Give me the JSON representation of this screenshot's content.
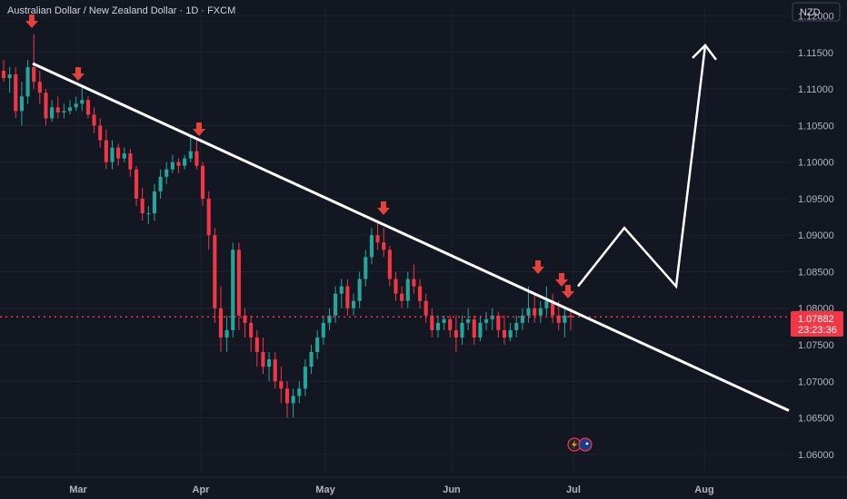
{
  "header": {
    "title": "Australian Dollar / New Zealand Dollar · 1D · FXCM",
    "currency_button": "NZD"
  },
  "price_badge": {
    "price": "1.07882",
    "countdown": "23:23:36",
    "color": "#f23645"
  },
  "colors": {
    "background": "#131722",
    "up": "#26a69a",
    "down": "#f23645",
    "grid": "#1e222d",
    "arrow": "#e5413d",
    "trendline": "#ffffff"
  },
  "icons": [
    "lightning-icon",
    "flag-au-icon"
  ],
  "chart_data": {
    "type": "candlestick",
    "title": "Australian Dollar / New Zealand Dollar · 1D · FXCM",
    "y_ticks": [
      "1.12000",
      "1.11500",
      "1.11000",
      "1.10500",
      "1.10000",
      "1.09500",
      "1.09000",
      "1.08500",
      "1.08000",
      "1.07500",
      "1.07000",
      "1.06500",
      "1.06000"
    ],
    "ylim": [
      1.0596,
      1.1212
    ],
    "x_ticks": [
      "Mar",
      "Apr",
      "May",
      "Jun",
      "Jul",
      "Aug"
    ],
    "last_price": 1.07882,
    "grid": true,
    "candles": [
      [
        1.1125,
        1.114,
        1.111,
        1.1115
      ],
      [
        1.1115,
        1.113,
        1.1095,
        1.112
      ],
      [
        1.112,
        1.113,
        1.106,
        1.107
      ],
      [
        1.107,
        1.111,
        1.105,
        1.109
      ],
      [
        1.109,
        1.114,
        1.108,
        1.113
      ],
      [
        1.113,
        1.1175,
        1.11,
        1.111
      ],
      [
        1.111,
        1.1125,
        1.108,
        1.1095
      ],
      [
        1.1095,
        1.11,
        1.105,
        1.106
      ],
      [
        1.106,
        1.1085,
        1.1055,
        1.1075
      ],
      [
        1.1075,
        1.109,
        1.106,
        1.1068
      ],
      [
        1.1068,
        1.108,
        1.106,
        1.107
      ],
      [
        1.107,
        1.1085,
        1.1065,
        1.1075
      ],
      [
        1.1075,
        1.109,
        1.107,
        1.108
      ],
      [
        1.108,
        1.1105,
        1.107,
        1.1085
      ],
      [
        1.1085,
        1.109,
        1.106,
        1.1065
      ],
      [
        1.1065,
        1.1075,
        1.104,
        1.105
      ],
      [
        1.105,
        1.106,
        1.102,
        1.103
      ],
      [
        1.103,
        1.1045,
        1.099,
        1.1
      ],
      [
        1.1,
        1.103,
        1.099,
        1.102
      ],
      [
        1.102,
        1.1025,
        1.0995,
        1.1005
      ],
      [
        1.1005,
        1.102,
        1.1,
        1.1012
      ],
      [
        1.1012,
        1.1018,
        1.098,
        1.099
      ],
      [
        1.099,
        1.0995,
        1.094,
        1.095
      ],
      [
        1.095,
        1.0965,
        1.092,
        1.093
      ],
      [
        1.093,
        1.094,
        1.0915,
        1.093
      ],
      [
        1.093,
        1.097,
        1.092,
        1.096
      ],
      [
        1.096,
        1.099,
        1.095,
        1.098
      ],
      [
        1.098,
        1.1,
        1.097,
        1.099
      ],
      [
        1.099,
        1.101,
        1.0985,
        1.1
      ],
      [
        1.1,
        1.1005,
        1.0985,
        1.0995
      ],
      [
        1.0995,
        1.101,
        1.099,
        1.1005
      ],
      [
        1.1005,
        1.1035,
        1.1,
        1.1015
      ],
      [
        1.1015,
        1.103,
        1.099,
        1.0995
      ],
      [
        1.0995,
        1.1,
        1.094,
        1.095
      ],
      [
        1.095,
        1.096,
        1.088,
        1.09
      ],
      [
        1.09,
        1.091,
        1.078,
        1.08
      ],
      [
        1.08,
        1.083,
        1.074,
        1.076
      ],
      [
        1.076,
        1.079,
        1.074,
        1.077
      ],
      [
        1.077,
        1.089,
        1.076,
        1.088
      ],
      [
        1.088,
        1.089,
        1.077,
        1.079
      ],
      [
        1.079,
        1.08,
        1.076,
        1.078
      ],
      [
        1.078,
        1.079,
        1.074,
        1.076
      ],
      [
        1.076,
        1.077,
        1.072,
        1.074
      ],
      [
        1.074,
        1.076,
        1.071,
        1.072
      ],
      [
        1.072,
        1.074,
        1.07,
        1.073
      ],
      [
        1.073,
        1.074,
        1.069,
        1.07
      ],
      [
        1.07,
        1.072,
        1.067,
        1.069
      ],
      [
        1.069,
        1.07,
        1.065,
        1.067
      ],
      [
        1.067,
        1.069,
        1.065,
        1.068
      ],
      [
        1.068,
        1.07,
        1.067,
        1.069
      ],
      [
        1.069,
        1.073,
        1.068,
        1.072
      ],
      [
        1.072,
        1.075,
        1.071,
        1.074
      ],
      [
        1.074,
        1.077,
        1.073,
        1.076
      ],
      [
        1.076,
        1.079,
        1.075,
        1.078
      ],
      [
        1.078,
        1.08,
        1.077,
        1.079
      ],
      [
        1.079,
        1.083,
        1.078,
        1.082
      ],
      [
        1.082,
        1.084,
        1.08,
        1.083
      ],
      [
        1.083,
        1.084,
        1.079,
        1.08
      ],
      [
        1.08,
        1.082,
        1.079,
        1.081
      ],
      [
        1.081,
        1.085,
        1.08,
        1.084
      ],
      [
        1.084,
        1.088,
        1.083,
        1.087
      ],
      [
        1.087,
        1.091,
        1.086,
        1.09
      ],
      [
        1.09,
        1.092,
        1.088,
        1.089
      ],
      [
        1.089,
        1.091,
        1.087,
        1.088
      ],
      [
        1.088,
        1.0885,
        1.083,
        1.084
      ],
      [
        1.084,
        1.085,
        1.081,
        1.082
      ],
      [
        1.082,
        1.083,
        1.08,
        1.081
      ],
      [
        1.081,
        1.085,
        1.08,
        1.084
      ],
      [
        1.084,
        1.086,
        1.082,
        1.083
      ],
      [
        1.083,
        1.084,
        1.08,
        1.081
      ],
      [
        1.081,
        1.082,
        1.078,
        1.079
      ],
      [
        1.079,
        1.08,
        1.076,
        1.077
      ],
      [
        1.077,
        1.079,
        1.076,
        1.078
      ],
      [
        1.078,
        1.079,
        1.077,
        1.0785
      ],
      [
        1.0785,
        1.079,
        1.076,
        1.077
      ],
      [
        1.077,
        1.079,
        1.074,
        1.076
      ],
      [
        1.076,
        1.079,
        1.075,
        1.078
      ],
      [
        1.078,
        1.08,
        1.077,
        1.0785
      ],
      [
        1.0785,
        1.079,
        1.075,
        1.076
      ],
      [
        1.076,
        1.079,
        1.0755,
        1.078
      ],
      [
        1.078,
        1.0795,
        1.077,
        1.0785
      ],
      [
        1.0785,
        1.08,
        1.077,
        1.079
      ],
      [
        1.079,
        1.0795,
        1.076,
        1.077
      ],
      [
        1.077,
        1.079,
        1.075,
        1.076
      ],
      [
        1.076,
        1.078,
        1.0755,
        1.077
      ],
      [
        1.077,
        1.079,
        1.076,
        1.078
      ],
      [
        1.078,
        1.08,
        1.077,
        1.079
      ],
      [
        1.079,
        1.083,
        1.078,
        1.08
      ],
      [
        1.08,
        1.082,
        1.078,
        1.079
      ],
      [
        1.079,
        1.081,
        1.078,
        1.08
      ],
      [
        1.08,
        1.083,
        1.079,
        1.081
      ],
      [
        1.081,
        1.082,
        1.078,
        1.079
      ],
      [
        1.079,
        1.081,
        1.077,
        1.078
      ],
      [
        1.078,
        1.08,
        1.076,
        1.079
      ],
      [
        1.079,
        1.08,
        1.077,
        1.0788
      ]
    ],
    "trendline": [
      [
        1.1135,
        0
      ],
      [
        1.066,
        1
      ]
    ],
    "projection_path": [
      1.083,
      1.091,
      1.083,
      1.116
    ],
    "resistance_touches": 6
  }
}
